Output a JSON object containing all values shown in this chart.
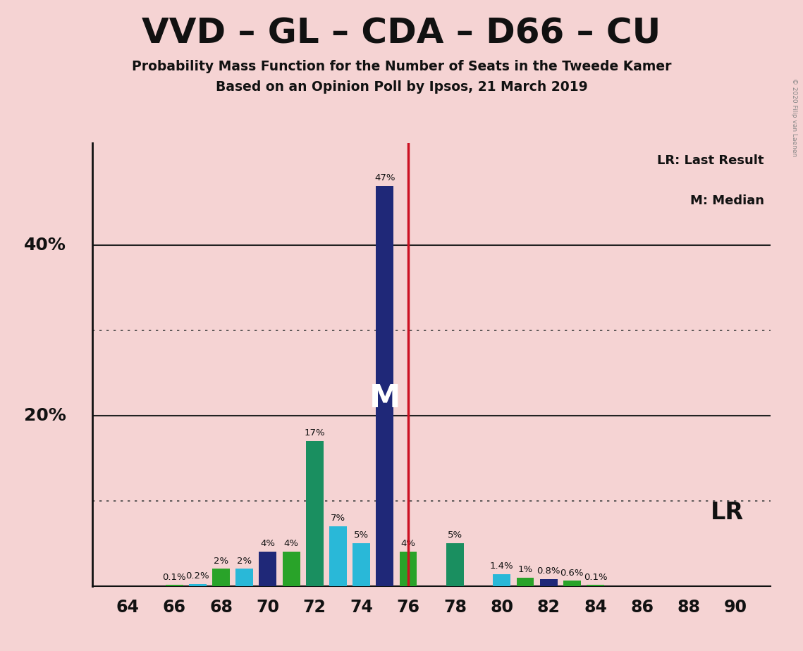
{
  "title": "VVD – GL – CDA – D66 – CU",
  "subtitle1": "Probability Mass Function for the Number of Seats in the Tweede Kamer",
  "subtitle2": "Based on an Opinion Poll by Ipsos, 21 March 2019",
  "copyright": "© 2020 Filip van Laenen",
  "bg_color": "#f5d3d3",
  "seats": [
    64,
    65,
    66,
    67,
    68,
    69,
    70,
    71,
    72,
    73,
    74,
    75,
    76,
    77,
    78,
    79,
    80,
    81,
    82,
    83,
    84,
    85,
    86,
    87,
    88,
    89,
    90
  ],
  "values": [
    0.0,
    0.0,
    0.1,
    0.2,
    2.0,
    2.0,
    4.0,
    4.0,
    17.0,
    7.0,
    5.0,
    47.0,
    4.0,
    0.0,
    5.0,
    0.0,
    1.4,
    1.0,
    0.8,
    0.6,
    0.1,
    0.0,
    0.0,
    0.0,
    0.0,
    0.0,
    0.0
  ],
  "bar_colors": {
    "64": "#29a329",
    "65": "#29b8d8",
    "66": "#29a329",
    "67": "#29b8d8",
    "68": "#29a329",
    "69": "#29b8d8",
    "70": "#1f2878",
    "71": "#29a329",
    "72": "#1a8f60",
    "73": "#29b8d8",
    "74": "#29b8d8",
    "75": "#1f2878",
    "76": "#29a329",
    "77": "#29b8d8",
    "78": "#1a8f60",
    "79": "#29b8d8",
    "80": "#29b8d8",
    "81": "#29a329",
    "82": "#1f2878",
    "83": "#29a329",
    "84": "#29a329",
    "85": "#29b8d8",
    "86": "#29a329",
    "87": "#29b8d8",
    "88": "#29a329",
    "89": "#29b8d8",
    "90": "#29a329"
  },
  "median_seat": 75,
  "lr_seat": 76,
  "ylim_max": 52,
  "bar_width": 0.75,
  "label_thresholds": 0.05,
  "legend_lr": "LR: Last Result",
  "legend_m": "M: Median",
  "lr_label": "LR"
}
